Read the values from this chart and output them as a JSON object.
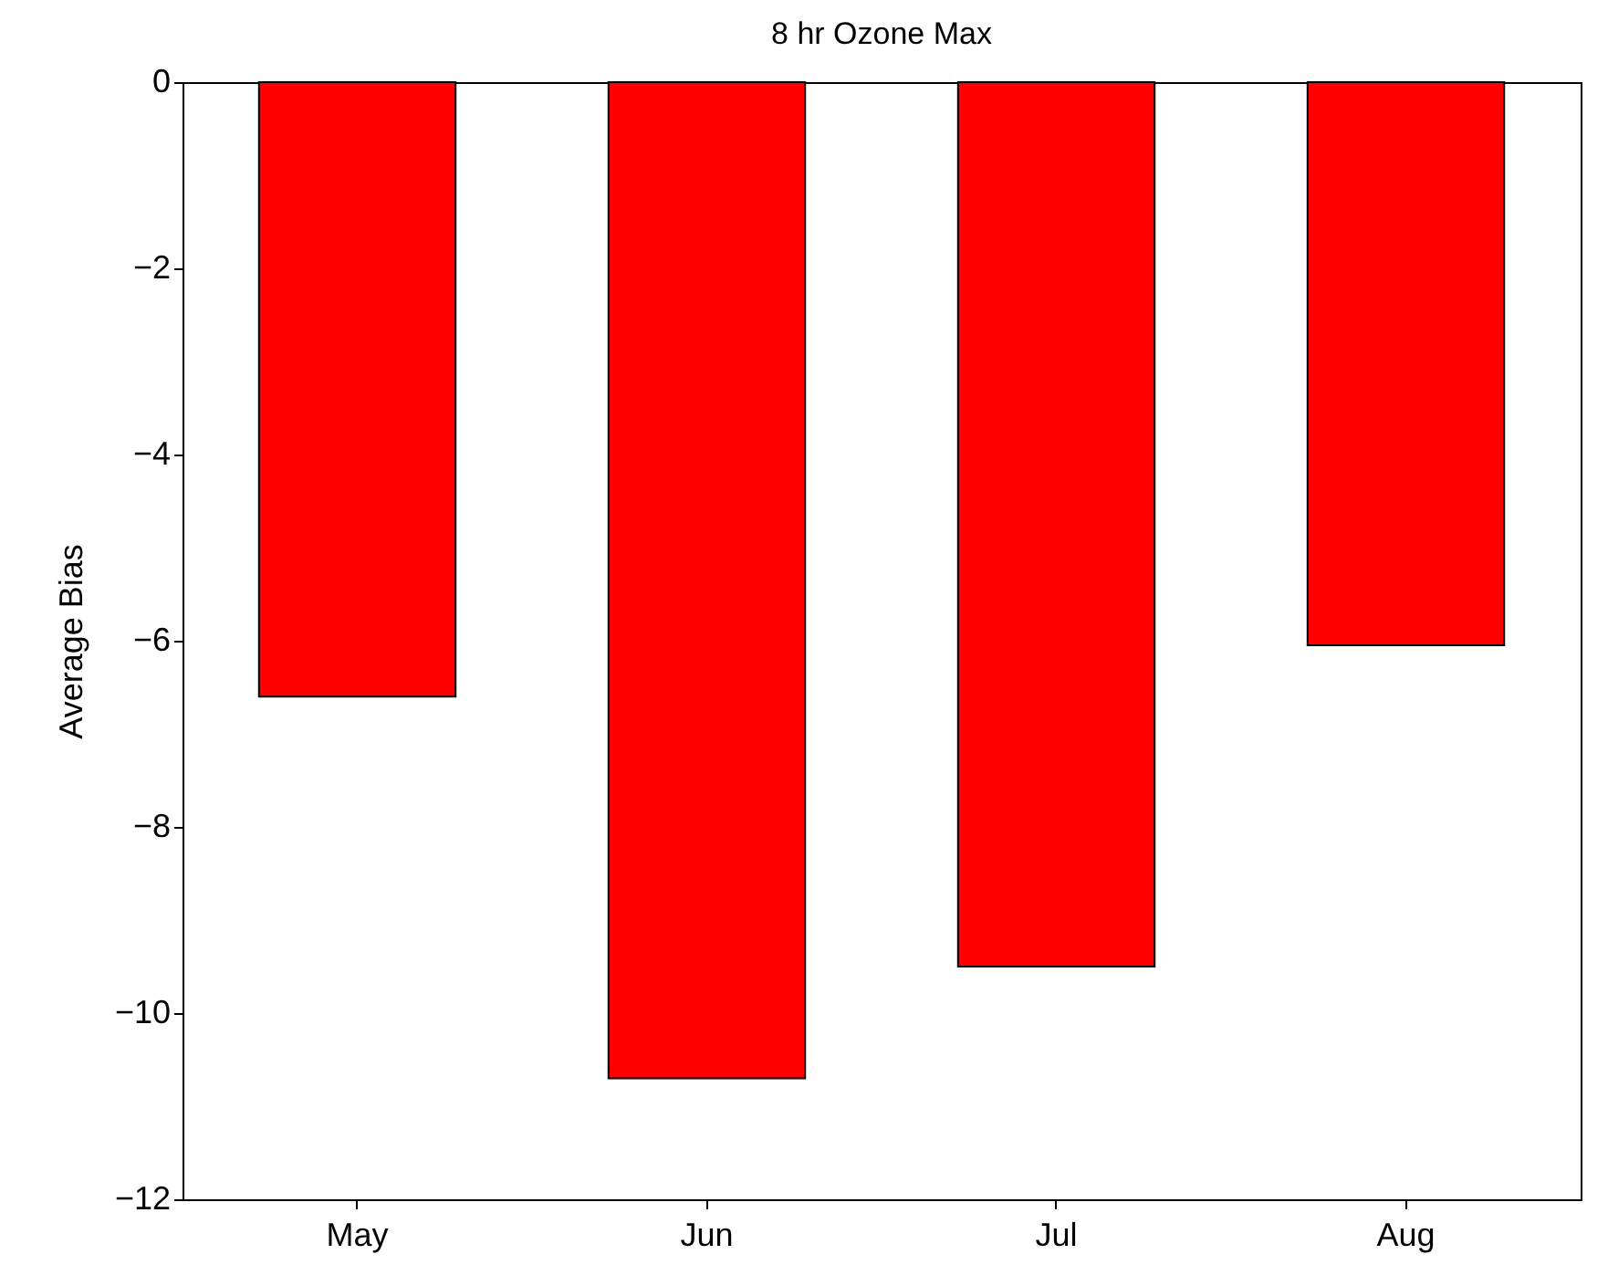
{
  "chart_data": {
    "type": "bar",
    "title": "8 hr Ozone Max",
    "ylabel": "Average Bias",
    "categories": [
      "May",
      "Jun",
      "Jul",
      "Aug"
    ],
    "values": [
      -6.6,
      -10.7,
      -9.5,
      -6.05
    ],
    "color": "#ff0000",
    "ylim": [
      -12,
      0
    ],
    "yticks": [
      -12,
      -10,
      -8,
      -6,
      -4,
      -2,
      0
    ],
    "grid": false
  }
}
